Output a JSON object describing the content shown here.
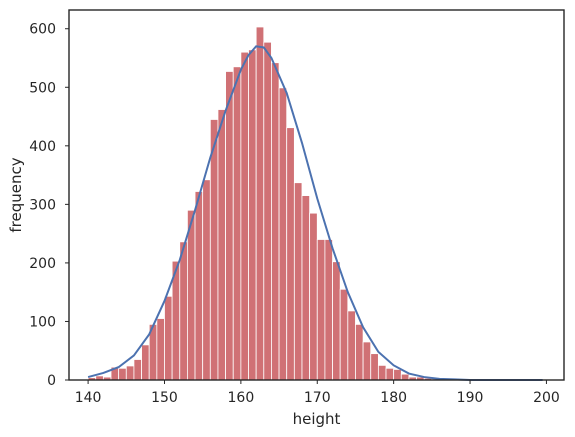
{
  "chart_data": {
    "type": "bar",
    "subtype": "histogram-with-kde",
    "title": "",
    "xlabel": "height",
    "ylabel": "frequency",
    "xlim": [
      137.5,
      202.3
    ],
    "ylim": [
      0,
      632
    ],
    "xticks": [
      140,
      150,
      160,
      170,
      180,
      190,
      200
    ],
    "yticks": [
      0,
      100,
      200,
      300,
      400,
      500,
      600
    ],
    "grid": false,
    "bin_edges_start": 140,
    "bin_width": 1,
    "counts": [
      4,
      7,
      5,
      22,
      20,
      24,
      35,
      60,
      95,
      105,
      143,
      203,
      236,
      290,
      322,
      342,
      445,
      462,
      527,
      535,
      560,
      564,
      603,
      577,
      542,
      499,
      431,
      337,
      315,
      285,
      240,
      240,
      202,
      155,
      118,
      95,
      65,
      45,
      25,
      20,
      18,
      10,
      5,
      5,
      3,
      2,
      1,
      1,
      1,
      0
    ],
    "kde": {
      "x": [
        140,
        142,
        144,
        146,
        148,
        150,
        152,
        154,
        156,
        158,
        160,
        161,
        162,
        163,
        164,
        166,
        168,
        170,
        172,
        174,
        176,
        178,
        180,
        182,
        184,
        186,
        188,
        190,
        195,
        199.5
      ],
      "y": [
        5,
        12,
        22,
        42,
        78,
        135,
        205,
        290,
        380,
        460,
        530,
        555,
        570,
        568,
        550,
        490,
        405,
        310,
        225,
        150,
        90,
        48,
        25,
        11,
        5,
        2,
        1,
        0,
        0,
        0
      ]
    },
    "colors": {
      "bars": "#c44e52",
      "kde": "#4c72b0"
    }
  }
}
